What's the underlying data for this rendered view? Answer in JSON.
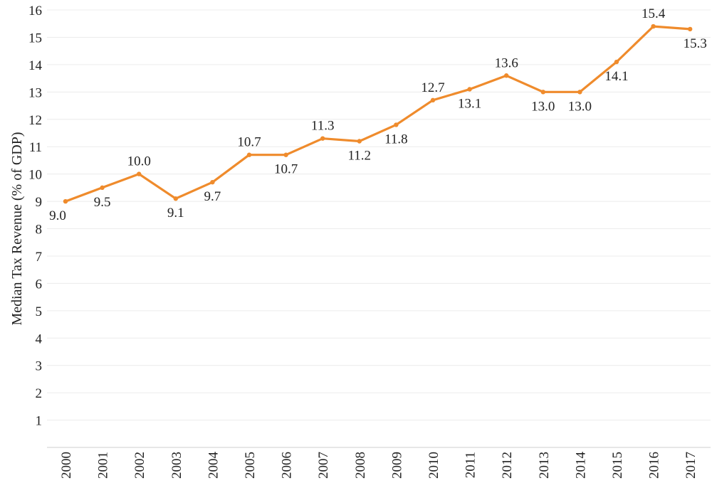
{
  "chart_data": {
    "type": "line",
    "title": "",
    "xlabel": "",
    "ylabel": "Median Tax Revenue (% of GDP)",
    "categories": [
      "2000",
      "2001",
      "2002",
      "2003",
      "2004",
      "2005",
      "2006",
      "2007",
      "2008",
      "2009",
      "2010",
      "2011",
      "2012",
      "2013",
      "2014",
      "2015",
      "2016",
      "2017"
    ],
    "series": [
      {
        "values": [
          9.0,
          9.5,
          10.0,
          9.1,
          9.7,
          10.7,
          10.7,
          11.3,
          11.2,
          11.8,
          12.7,
          13.1,
          13.6,
          13.0,
          13.0,
          14.1,
          15.4,
          15.3
        ],
        "labels": [
          "9.0",
          "9.5",
          "10.0",
          "9.1",
          "9.7",
          "10.7",
          "10.7",
          "11.3",
          "11.2",
          "11.8",
          "12.7",
          "13.1",
          "13.6",
          "13.0",
          "13.0",
          "14.1",
          "15.4",
          "15.3"
        ],
        "label_positions": [
          "below",
          "below",
          "above",
          "below",
          "below",
          "above",
          "below",
          "above",
          "below",
          "below",
          "above",
          "below",
          "above",
          "below",
          "below",
          "below",
          "above",
          "below"
        ],
        "color": "#ef8b2c"
      }
    ],
    "yticks": [
      "1",
      "2",
      "3",
      "4",
      "5",
      "6",
      "7",
      "8",
      "9",
      "10",
      "11",
      "12",
      "13",
      "14",
      "15",
      "16"
    ],
    "ylim": [
      0,
      16
    ],
    "grid": true,
    "gridline_color": "#ececec",
    "axis_color": "#cfcfcf",
    "legend": "none"
  }
}
